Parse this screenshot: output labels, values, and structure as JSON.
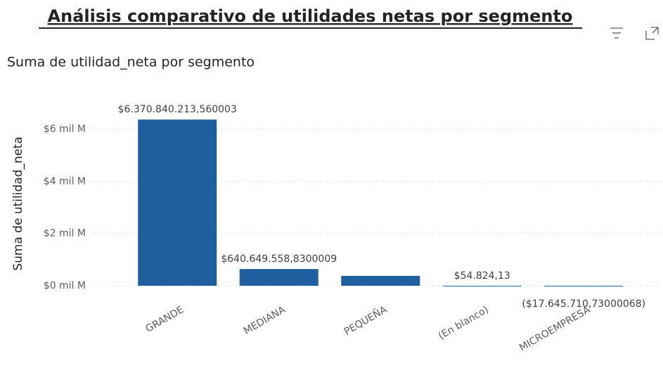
{
  "chart_data": {
    "type": "bar",
    "title": "Análisis comparativo de utilidades netas por segmento",
    "subtitle": "Suma de utilidad_neta por segmento",
    "y_label": "Suma de utilidad_neta",
    "categories": [
      "GRANDE",
      "MEDIANA",
      "PEQUEÑA",
      "(En blanco)",
      "MICROEMPRESA"
    ],
    "values": [
      6370840213.560003,
      640649558.8300009,
      380000000,
      54824.13,
      -17645710.73000068
    ],
    "value_labels": [
      "$6.370.840.213,560003",
      "$640.649.558,8300009",
      null,
      "$54.824,13",
      "($17.645.710,73000068)"
    ],
    "color": "#1f5f9e",
    "ylim": [
      -300000000,
      6600000000
    ],
    "yticks": [
      {
        "value": 0,
        "label": "$0 mil M"
      },
      {
        "value": 2000000000,
        "label": "$2 mil M"
      },
      {
        "value": 4000000000,
        "label": "$4 mil M"
      },
      {
        "value": 6000000000,
        "label": "$6 mil M"
      }
    ],
    "grid": true
  }
}
